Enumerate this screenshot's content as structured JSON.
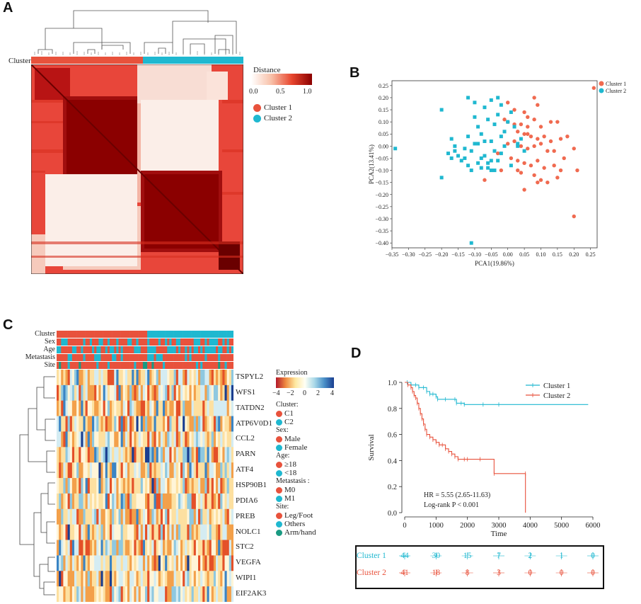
{
  "panels": {
    "a": "A",
    "b": "B",
    "c": "C",
    "d": "D"
  },
  "panelA": {
    "cluster_label": "Cluster",
    "legend_title": "Distance",
    "legend_ticks": [
      "0.0",
      "0.5",
      "1.0"
    ],
    "legend_items": [
      "Cluster 1",
      "Cluster 2"
    ],
    "colors": {
      "cluster1": "#e8523c",
      "cluster2": "#1fb8d0",
      "dark": "#8b0000",
      "light": "#fbeee8"
    }
  },
  "panelB": {
    "chart_data": {
      "type": "scatter",
      "xlabel": "PCA1(19.86%)",
      "ylabel": "PCA2(13.41%)",
      "xlim": [
        -0.35,
        0.27
      ],
      "ylim": [
        -0.42,
        0.27
      ],
      "xticks": [
        -0.35,
        -0.3,
        -0.25,
        -0.2,
        -0.15,
        -0.1,
        -0.05,
        0.0,
        0.05,
        0.1,
        0.15,
        0.2,
        0.25
      ],
      "yticks": [
        0.25,
        0.2,
        0.15,
        0.1,
        0.05,
        0.0,
        -0.05,
        -0.1,
        -0.15,
        -0.2,
        -0.25,
        -0.3,
        -0.35,
        -0.4
      ],
      "legend": [
        "Cluster 1",
        "Cluster 2"
      ],
      "series": [
        {
          "name": "Cluster 1",
          "color": "#f06a50",
          "marker": "circle",
          "x": [
            0.26,
            0.08,
            0.0,
            0.09,
            0.02,
            0.05,
            0.06,
            0.08,
            -0.01,
            0.0,
            0.02,
            0.04,
            0.06,
            0.1,
            0.15,
            0.18,
            0.03,
            0.05,
            0.07,
            0.09,
            0.11,
            0.13,
            0.16,
            0.0,
            0.02,
            0.04,
            0.06,
            0.08,
            0.1,
            0.12,
            0.14,
            0.17,
            0.2,
            -0.03,
            0.01,
            0.03,
            0.05,
            0.07,
            0.09,
            0.11,
            0.14,
            0.16,
            0.21,
            -0.02,
            0.04,
            0.08,
            0.1,
            0.05,
            0.15,
            0.12,
            -0.07,
            0.2,
            0.09,
            0.03,
            0.06,
            0.13
          ],
          "y": [
            0.24,
            0.2,
            0.18,
            0.17,
            0.15,
            0.14,
            0.12,
            0.11,
            0.11,
            0.1,
            0.09,
            0.09,
            0.08,
            0.08,
            0.1,
            0.04,
            0.06,
            0.05,
            0.04,
            0.03,
            0.04,
            0.02,
            0.03,
            0.01,
            0.02,
            0.0,
            -0.01,
            0.0,
            0.01,
            -0.02,
            -0.02,
            -0.05,
            -0.01,
            -0.03,
            -0.05,
            -0.06,
            -0.07,
            -0.08,
            -0.06,
            -0.09,
            -0.08,
            -0.1,
            -0.1,
            -0.1,
            -0.11,
            -0.12,
            -0.14,
            -0.18,
            -0.13,
            -0.15,
            -0.14,
            -0.29,
            -0.15,
            -0.1,
            0.05,
            0.1
          ]
        },
        {
          "name": "Cluster 2",
          "color": "#1fb8d0",
          "marker": "square",
          "x": [
            -0.34,
            -0.2,
            -0.12,
            -0.1,
            -0.07,
            -0.05,
            -0.03,
            -0.02,
            0.01,
            -0.1,
            -0.06,
            -0.03,
            0.0,
            -0.09,
            -0.04,
            -0.01,
            0.02,
            -0.17,
            -0.12,
            -0.08,
            -0.05,
            -0.02,
            0.04,
            -0.16,
            -0.13,
            -0.1,
            -0.07,
            -0.04,
            -0.01,
            0.03,
            -0.18,
            -0.15,
            -0.11,
            -0.08,
            -0.05,
            -0.02,
            0.05,
            -0.17,
            -0.14,
            -0.12,
            -0.09,
            -0.06,
            -0.03,
            -0.2,
            -0.11,
            -0.08,
            -0.05,
            -0.11,
            -0.16,
            -0.13,
            -0.06,
            -0.04,
            0.01,
            0.03,
            -0.09,
            -0.07
          ],
          "y": [
            -0.01,
            0.15,
            0.2,
            0.18,
            0.16,
            0.19,
            0.2,
            0.17,
            0.14,
            0.12,
            0.11,
            0.13,
            0.1,
            0.08,
            0.09,
            0.06,
            0.08,
            0.03,
            0.04,
            0.05,
            0.02,
            0.04,
            0.03,
            0.0,
            -0.01,
            0.01,
            0.02,
            -0.02,
            0.0,
            0.01,
            -0.03,
            -0.04,
            -0.02,
            -0.05,
            -0.06,
            -0.03,
            -0.02,
            -0.05,
            -0.06,
            -0.08,
            -0.07,
            -0.09,
            -0.06,
            -0.13,
            -0.1,
            -0.09,
            -0.1,
            -0.4,
            -0.02,
            -0.05,
            -0.07,
            -0.1,
            -0.08,
            0.0,
            0.01,
            -0.04
          ]
        }
      ]
    }
  },
  "panelC": {
    "tracks": [
      "Cluster",
      "Sex",
      "Age",
      "Metastasis",
      "Site"
    ],
    "genes": [
      "TSPYL2",
      "WFS1",
      "TATDN2",
      "ATP6V0D1",
      "CCL2",
      "PARN",
      "ATF4",
      "HSP90B1",
      "PDIA6",
      "PREB",
      "NOLC1",
      "STC2",
      "VEGFA",
      "WIPI1",
      "EIF2AK3"
    ],
    "expr_title": "Expression",
    "expr_ticks": [
      "−4",
      "−2",
      "0",
      "2",
      "4"
    ],
    "legend": {
      "cluster_title": "Cluster:",
      "cluster": [
        "C1",
        "C2"
      ],
      "sex_title": "Sex:",
      "sex": [
        "Male",
        "Female"
      ],
      "age_title": "Age:",
      "age": [
        "≥18",
        "<18"
      ],
      "meta_title": "Metastasis :",
      "meta": [
        "M0",
        "M1"
      ],
      "site_title": "Site:",
      "site": [
        "Leg/Foot",
        "Others",
        "Arm/hand"
      ]
    },
    "colors": {
      "red": "#e8523c",
      "cyan": "#1fb8d0",
      "teal": "#1a9a82"
    }
  },
  "panelD": {
    "chart_data": {
      "type": "line",
      "xlabel": "Time",
      "ylabel": "Survival",
      "xlim": [
        0,
        6000
      ],
      "ylim": [
        0,
        1.0
      ],
      "xticks": [
        0,
        1000,
        2000,
        3000,
        4000,
        5000,
        6000
      ],
      "yticks": [
        "0.0",
        "0.2",
        "0.4",
        "0.6",
        "0.8",
        "1.0"
      ],
      "legend": [
        "Cluster 1",
        "Cluster 2"
      ],
      "annotation_hr": "HR = 5.55 (2.65-11.63)",
      "annotation_p": "Log-rank P < 0.001",
      "series": [
        {
          "name": "Cluster 1",
          "color": "#1fb8d0",
          "x": [
            0,
            80,
            200,
            350,
            450,
            600,
            700,
            800,
            900,
            1000,
            1050,
            1300,
            1600,
            1650,
            1800,
            1900,
            2500,
            3000,
            5850
          ],
          "y": [
            1.0,
            1.0,
            0.98,
            0.98,
            0.96,
            0.96,
            0.93,
            0.91,
            0.91,
            0.89,
            0.87,
            0.87,
            0.87,
            0.84,
            0.84,
            0.83,
            0.83,
            0.83,
            0.83
          ]
        },
        {
          "name": "Cluster 2",
          "color": "#e8523c",
          "x": [
            0,
            100,
            200,
            250,
            300,
            350,
            400,
            450,
            500,
            550,
            600,
            650,
            700,
            800,
            900,
            1000,
            1100,
            1200,
            1300,
            1400,
            1500,
            1600,
            1700,
            1900,
            2000,
            2400,
            2850,
            3850,
            3850
          ],
          "y": [
            1.0,
            0.98,
            0.96,
            0.93,
            0.9,
            0.88,
            0.84,
            0.8,
            0.76,
            0.72,
            0.68,
            0.64,
            0.6,
            0.58,
            0.56,
            0.54,
            0.52,
            0.52,
            0.49,
            0.47,
            0.45,
            0.43,
            0.41,
            0.41,
            0.41,
            0.41,
            0.3,
            0.3,
            0.0
          ]
        }
      ]
    },
    "risk_table": {
      "rows": [
        {
          "label": "Cluster 1",
          "color": "#1fb8d0",
          "values": [
            "44",
            "30",
            "15",
            "7",
            "2",
            "1",
            "0"
          ]
        },
        {
          "label": "Cluster 2",
          "color": "#e8523c",
          "values": [
            "41",
            "18",
            "8",
            "3",
            "0",
            "0",
            "0"
          ]
        }
      ]
    }
  }
}
